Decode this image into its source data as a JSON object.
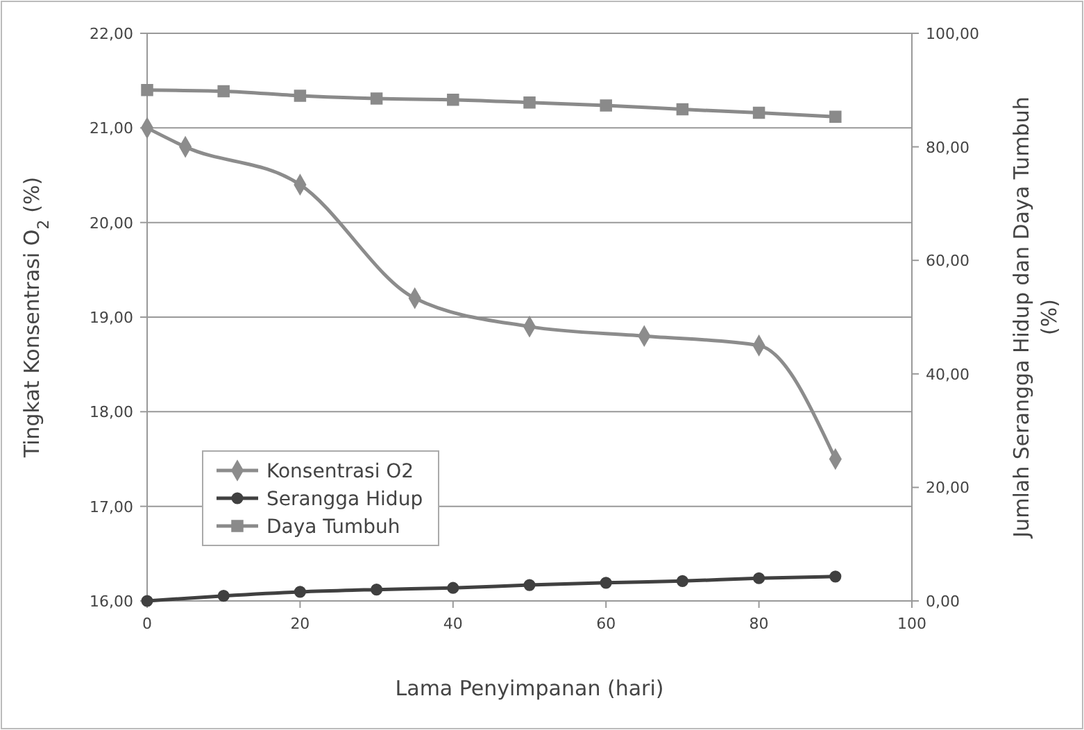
{
  "chart_data": {
    "type": "line",
    "xlabel": "Lama Penyimpanan (hari)",
    "ylabel": "Tingkat Konsentrasi O$_{2}$ (%)",
    "y2label": "Jumlah Serangga Hidup dan Daya Tumbuh (%)",
    "xlim": [
      0,
      100
    ],
    "xticks": [
      0,
      20,
      40,
      60,
      80,
      100
    ],
    "ylim": [
      16,
      22
    ],
    "yticks": [
      {
        "value": 16,
        "label": "16,00"
      },
      {
        "value": 17,
        "label": "17,00"
      },
      {
        "value": 18,
        "label": "18,00"
      },
      {
        "value": 19,
        "label": "19,00"
      },
      {
        "value": 20,
        "label": "20,00"
      },
      {
        "value": 21,
        "label": "21,00"
      },
      {
        "value": 22,
        "label": "22,00"
      }
    ],
    "y2lim": [
      0,
      100
    ],
    "y2ticks": [
      {
        "value": 0,
        "label": "0,00"
      },
      {
        "value": 20,
        "label": "20,00"
      },
      {
        "value": 40,
        "label": "40,00"
      },
      {
        "value": 60,
        "label": "60,00"
      },
      {
        "value": 80,
        "label": "80,00"
      },
      {
        "value": 100,
        "label": "100,00"
      }
    ],
    "grid": "y",
    "legend": "bottom left",
    "line_style": "solid",
    "series": [
      {
        "name": "Konsentrasi O2",
        "color": "#8c8c8c",
        "marker": "diamond",
        "x": [
          0,
          5,
          20,
          35,
          50,
          65,
          80,
          90
        ],
        "values": [
          21.0,
          20.8,
          20.4,
          19.2,
          18.9,
          18.8,
          18.7,
          17.5
        ]
      },
      {
        "name": "Serangga Hidup",
        "color": "#404040",
        "marker": "circle",
        "axis": "y2",
        "x": [
          0,
          10,
          20,
          30,
          40,
          50,
          60,
          70,
          80,
          90
        ],
        "values": [
          0,
          0.9,
          1.6,
          2.0,
          2.3,
          2.8,
          3.2,
          3.5,
          4.0,
          4.3
        ]
      },
      {
        "name": "Daya Tumbuh",
        "color": "#8a8a8a",
        "marker": "square",
        "axis": "y2",
        "x": [
          0,
          10,
          20,
          30,
          40,
          50,
          60,
          70,
          80,
          90
        ],
        "values": [
          90,
          89.8,
          89,
          88.5,
          88.3,
          87.8,
          87.3,
          86.6,
          86,
          85.3
        ]
      }
    ]
  }
}
